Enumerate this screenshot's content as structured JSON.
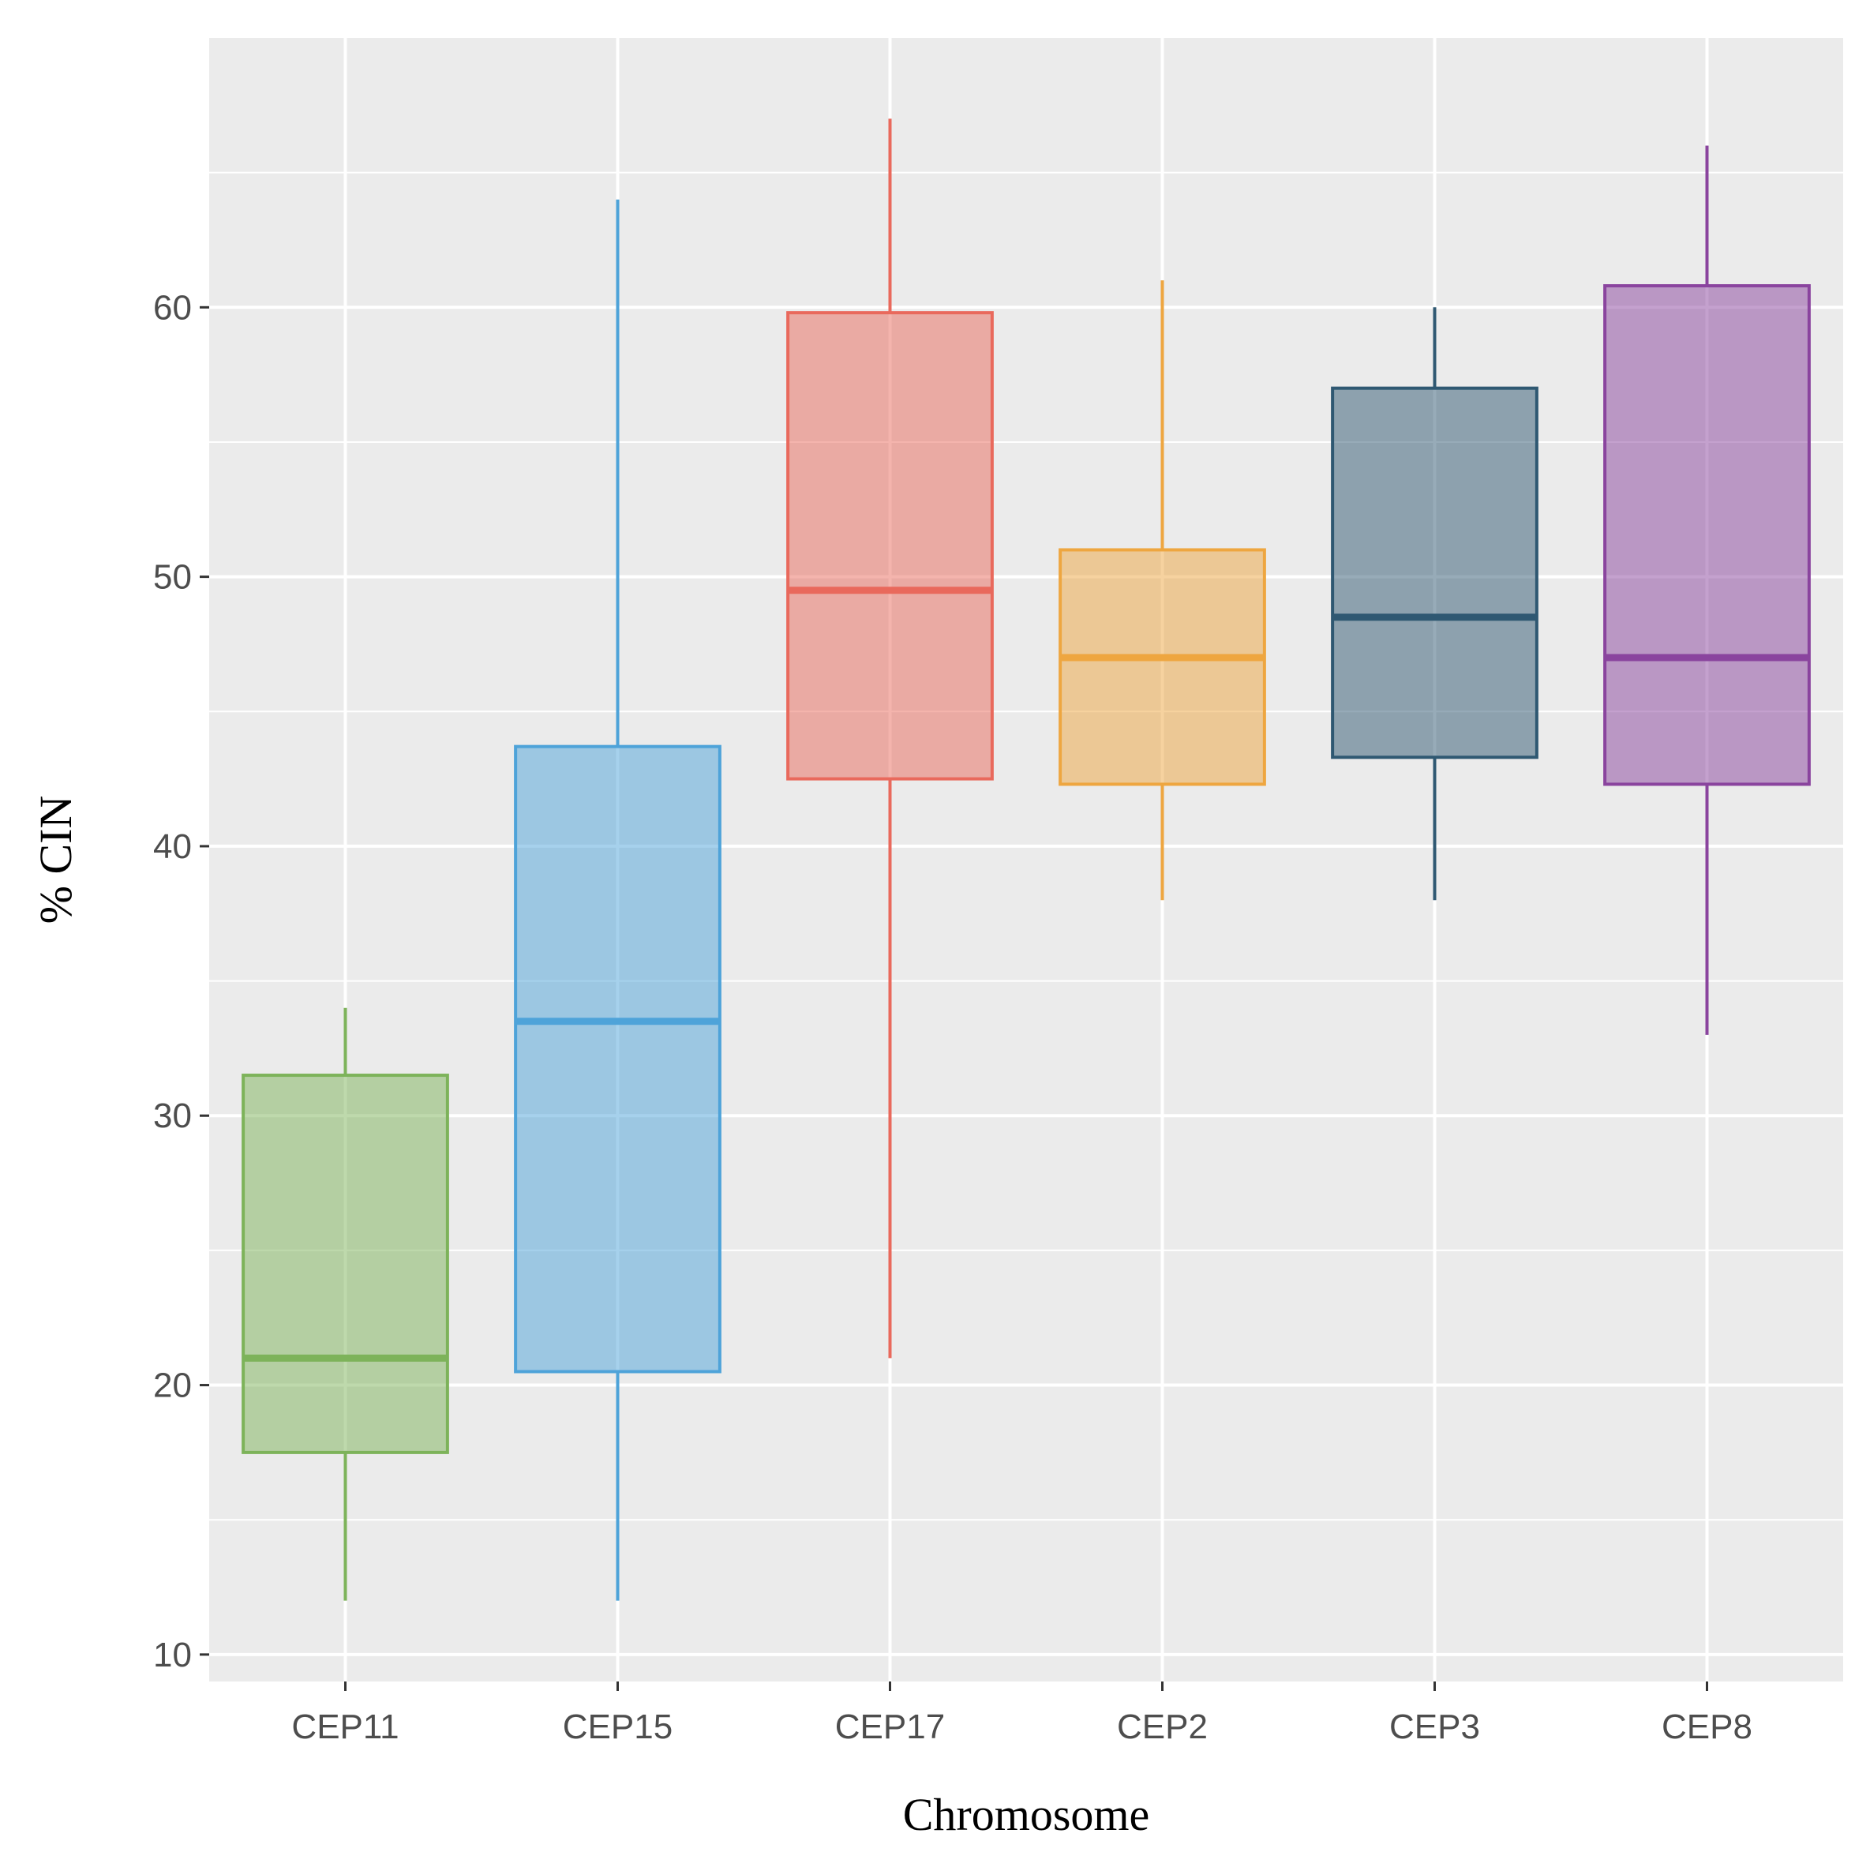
{
  "chart_data": {
    "type": "boxplot",
    "xlabel": "Chromosome",
    "ylabel": "% CIN",
    "ylim": [
      9,
      70
    ],
    "yticks": [
      10,
      20,
      30,
      40,
      50,
      60
    ],
    "grid": true,
    "legend": "none",
    "categories": [
      "CEP11",
      "CEP15",
      "CEP17",
      "CEP2",
      "CEP3",
      "CEP8"
    ],
    "series": [
      {
        "category": "CEP11",
        "min": 12,
        "q1": 17.5,
        "median": 21,
        "q3": 31.5,
        "max": 34,
        "color": "#7db35a"
      },
      {
        "category": "CEP15",
        "min": 12,
        "q1": 20.5,
        "median": 33.5,
        "q3": 43.7,
        "max": 64,
        "color": "#4ea3d9"
      },
      {
        "category": "CEP17",
        "min": 21,
        "q1": 42.5,
        "median": 49.5,
        "q3": 59.8,
        "max": 67,
        "color": "#e9695c"
      },
      {
        "category": "CEP2",
        "min": 38,
        "q1": 42.3,
        "median": 47,
        "q3": 51,
        "max": 61,
        "color": "#eea640"
      },
      {
        "category": "CEP3",
        "min": 38,
        "q1": 43.3,
        "median": 48.5,
        "q3": 57,
        "max": 60,
        "color": "#2f5872"
      },
      {
        "category": "CEP8",
        "min": 33,
        "q1": 42.3,
        "median": 47,
        "q3": 60.8,
        "max": 66,
        "color": "#8a449e"
      }
    ]
  }
}
